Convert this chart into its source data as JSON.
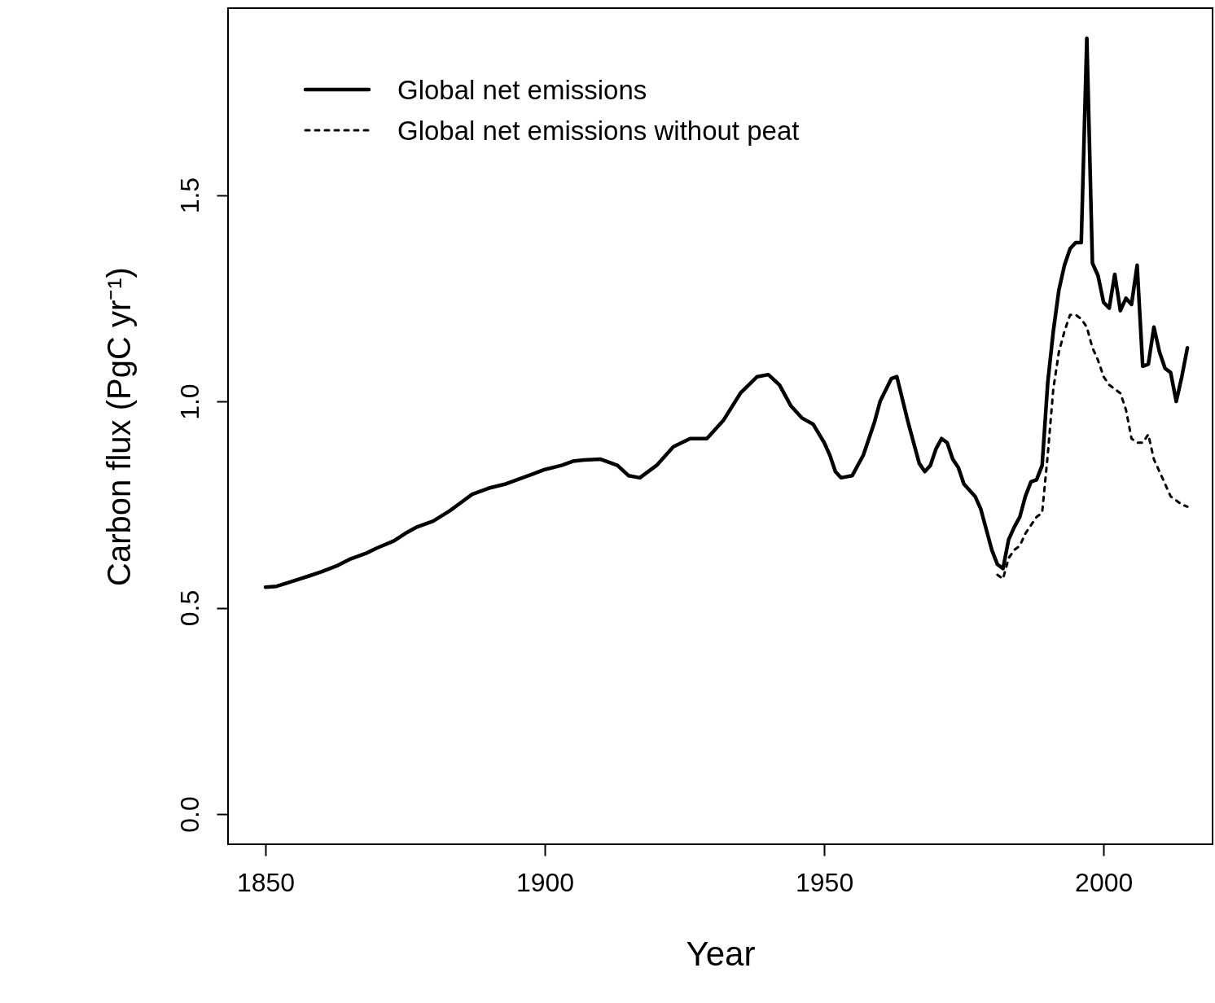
{
  "chart_data": {
    "type": "line",
    "xlabel": "Year",
    "ylabel": "Carbon flux (PgC yr⁻¹)",
    "xlim": [
      1843.3,
      2019.5
    ],
    "ylim": [
      -0.073,
      1.953
    ],
    "xticks": [
      1850,
      1900,
      1950,
      2000
    ],
    "yticks": [
      {
        "value": 0,
        "label": "0.0"
      },
      0.5,
      {
        "value": 1,
        "label": "1.0"
      },
      1.5
    ],
    "grid": false,
    "legend": "top left",
    "series": [
      {
        "name": "Global net emissions",
        "color": "#000000",
        "line_style": "solid",
        "x": [
          1850,
          1852,
          1855,
          1858,
          1860,
          1863,
          1865,
          1868,
          1870,
          1873,
          1875,
          1877,
          1880,
          1883,
          1885,
          1887,
          1890,
          1893,
          1895,
          1898,
          1900,
          1903,
          1905,
          1907,
          1910,
          1913,
          1915,
          1917,
          1920,
          1923,
          1926,
          1929,
          1932,
          1935,
          1938,
          1940,
          1942,
          1944,
          1946,
          1948,
          1950,
          1951,
          1952,
          1953,
          1955,
          1957,
          1959,
          1960,
          1962,
          1963,
          1965,
          1967,
          1968,
          1969,
          1970,
          1971,
          1972,
          1973,
          1974,
          1975,
          1977,
          1978,
          1979,
          1980,
          1981,
          1982,
          1983,
          1984,
          1985,
          1986,
          1987,
          1988,
          1989,
          1990,
          1991,
          1992,
          1993,
          1994,
          1995,
          1996,
          1997,
          1998,
          1999,
          2000,
          2001,
          2002,
          2003,
          2004,
          2005,
          2006,
          2007,
          2008,
          2009,
          2010,
          2011,
          2012,
          2013,
          2014,
          2015
        ],
        "values": [
          0.55,
          0.552,
          0.565,
          0.578,
          0.587,
          0.603,
          0.617,
          0.632,
          0.645,
          0.662,
          0.68,
          0.695,
          0.71,
          0.735,
          0.755,
          0.775,
          0.79,
          0.8,
          0.81,
          0.825,
          0.835,
          0.845,
          0.855,
          0.858,
          0.86,
          0.845,
          0.82,
          0.815,
          0.845,
          0.89,
          0.91,
          0.91,
          0.955,
          1.02,
          1.06,
          1.065,
          1.04,
          0.99,
          0.96,
          0.945,
          0.9,
          0.87,
          0.83,
          0.815,
          0.82,
          0.87,
          0.95,
          1.0,
          1.055,
          1.06,
          0.95,
          0.85,
          0.83,
          0.845,
          0.885,
          0.91,
          0.9,
          0.86,
          0.84,
          0.8,
          0.77,
          0.74,
          0.69,
          0.64,
          0.605,
          0.595,
          0.665,
          0.695,
          0.72,
          0.77,
          0.805,
          0.81,
          0.845,
          1.045,
          1.17,
          1.27,
          1.33,
          1.37,
          1.385,
          1.385,
          1.88,
          1.335,
          1.305,
          1.24,
          1.226,
          1.308,
          1.22,
          1.25,
          1.235,
          1.33,
          1.085,
          1.09,
          1.18,
          1.12,
          1.08,
          1.07,
          1.0,
          1.06,
          1.13
        ]
      },
      {
        "name": "Global net emissions without peat",
        "color": "#000000",
        "line_style": "dotted",
        "x": [
          1981,
          1982,
          1983,
          1984,
          1985,
          1986,
          1987,
          1988,
          1989,
          1990,
          1991,
          1992,
          1993,
          1994,
          1995,
          1996,
          1997,
          1998,
          1999,
          2000,
          2001,
          2002,
          2003,
          2004,
          2005,
          2006,
          2007,
          2008,
          2009,
          2010,
          2011,
          2012,
          2013,
          2014,
          2015
        ],
        "values": [
          0.58,
          0.57,
          0.62,
          0.64,
          0.65,
          0.68,
          0.7,
          0.72,
          0.73,
          0.87,
          1.03,
          1.12,
          1.17,
          1.21,
          1.21,
          1.2,
          1.18,
          1.13,
          1.1,
          1.06,
          1.04,
          1.03,
          1.02,
          0.98,
          0.91,
          0.9,
          0.9,
          0.92,
          0.86,
          0.83,
          0.8,
          0.77,
          0.76,
          0.75,
          0.745
        ]
      }
    ]
  }
}
